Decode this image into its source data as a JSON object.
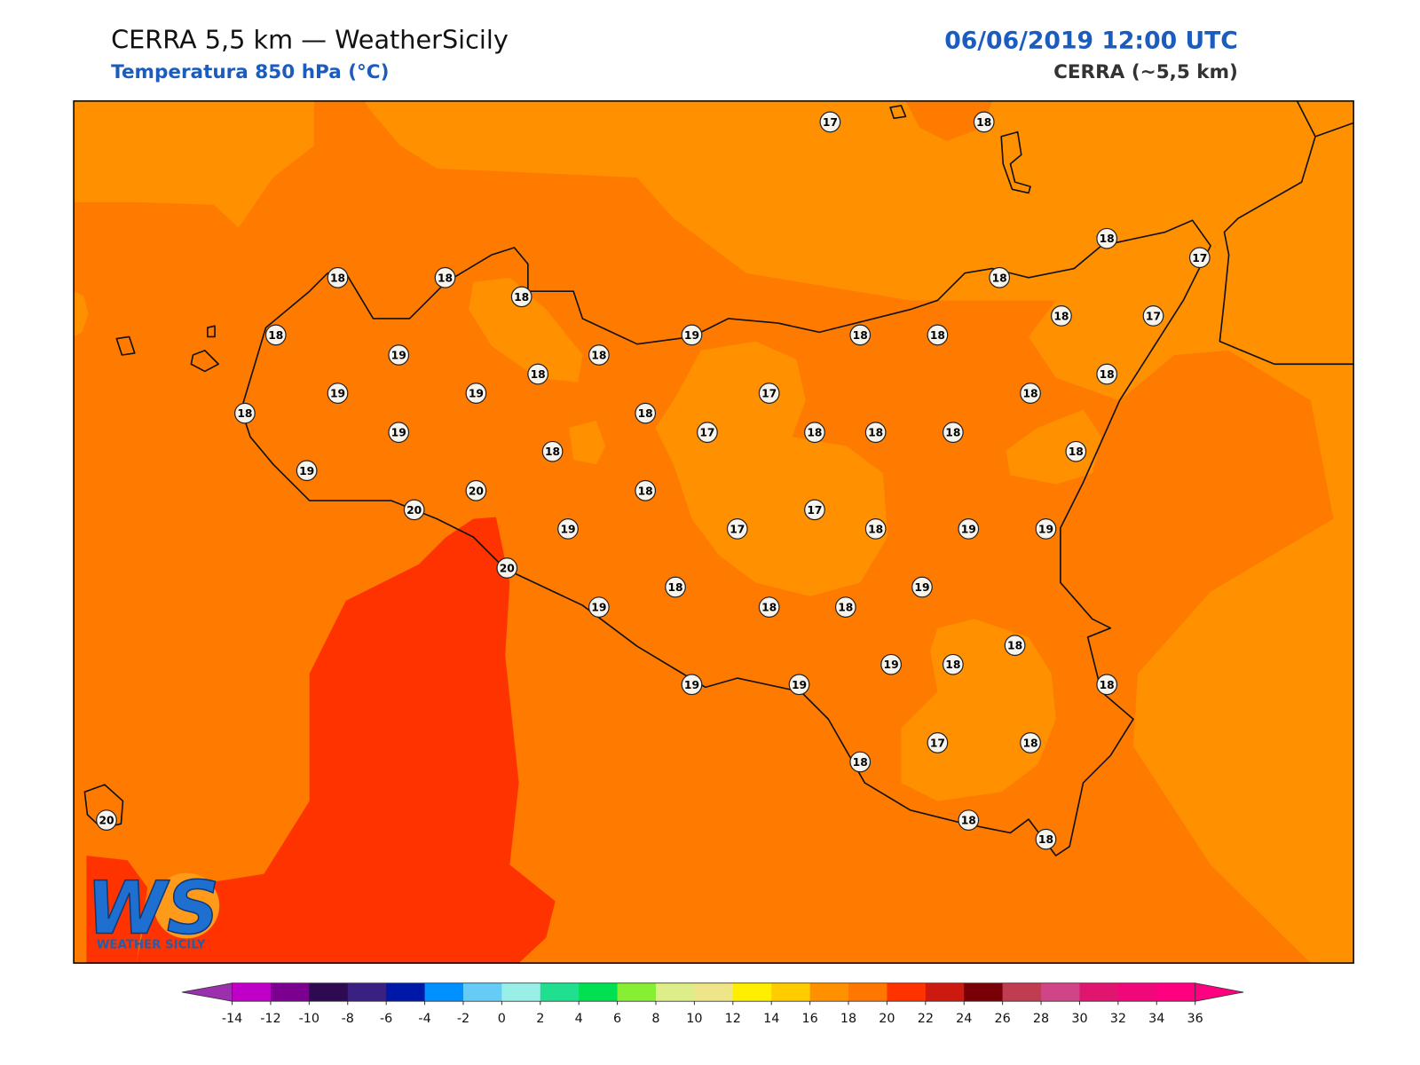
{
  "header": {
    "title": "CERRA 5,5 km — WeatherSicily",
    "subtitle": "Temperatura 850 hPa (°C)",
    "date": "06/06/2019 12:00 UTC",
    "model": "CERRA (~5,5 km)"
  },
  "map": {
    "stations": [
      17,
      18,
      18,
      17,
      18,
      18,
      18,
      18,
      18,
      18,
      17,
      19,
      18,
      19,
      18,
      18,
      18,
      18,
      19,
      19,
      17,
      18,
      18,
      18,
      19,
      17,
      18,
      18,
      18,
      18,
      18,
      19,
      20,
      18,
      20,
      17,
      19,
      17,
      18,
      19,
      19,
      20,
      19,
      18,
      19,
      18,
      18,
      18,
      19,
      18,
      19,
      19,
      18,
      17,
      18,
      18,
      18,
      18,
      20
    ]
  },
  "colorbar": {
    "ticks": [
      -14,
      -12,
      -10,
      -8,
      -6,
      -4,
      -2,
      0,
      2,
      4,
      6,
      8,
      10,
      12,
      14,
      16,
      18,
      20,
      22,
      24,
      26,
      28,
      30,
      32,
      34,
      36
    ],
    "under_color": "#9b2fae",
    "over_color": "#ff0080",
    "colors": [
      "#c000c8",
      "#7b0090",
      "#2e0a50",
      "#3a2080",
      "#0018a8",
      "#0090ff",
      "#66ccf5",
      "#99eee8",
      "#20e090",
      "#00e050",
      "#88ee33",
      "#ddee88",
      "#eee588",
      "#ffee00",
      "#ffcc00",
      "#ff9100",
      "#ff7700",
      "#ff3300",
      "#cc1a10",
      "#7a0008",
      "#c03c50",
      "#d04488",
      "#e01570",
      "#f0087a",
      "#ff0080"
    ]
  },
  "logo": {
    "mark": "WS",
    "text": "WEATHER SICILY"
  }
}
